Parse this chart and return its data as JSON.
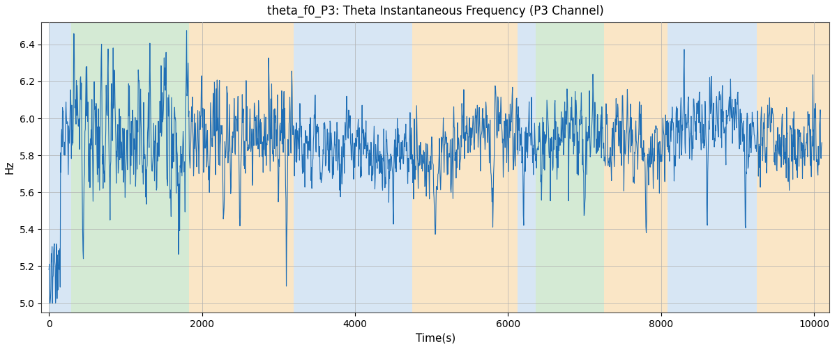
{
  "title": "theta_f0_P3: Theta Instantaneous Frequency (P3 Channel)",
  "xlabel": "Time(s)",
  "ylabel": "Hz",
  "xlim": [
    -100,
    10200
  ],
  "ylim": [
    4.95,
    6.52
  ],
  "yticks": [
    5.0,
    5.2,
    5.4,
    5.6,
    5.8,
    6.0,
    6.2,
    6.4
  ],
  "xticks": [
    0,
    2000,
    4000,
    6000,
    8000,
    10000
  ],
  "line_color": "#1f6eb5",
  "line_width": 0.8,
  "background_color": "#ffffff",
  "grid_color": "#b0b0b0",
  "bands": [
    {
      "xmin": 0,
      "xmax": 290,
      "color": "#a8c8e8",
      "alpha": 0.45
    },
    {
      "xmin": 290,
      "xmax": 1830,
      "color": "#90c890",
      "alpha": 0.38
    },
    {
      "xmin": 1830,
      "xmax": 3200,
      "color": "#f5c882",
      "alpha": 0.45
    },
    {
      "xmin": 3200,
      "xmax": 4750,
      "color": "#a8c8e8",
      "alpha": 0.45
    },
    {
      "xmin": 4750,
      "xmax": 6120,
      "color": "#f5c882",
      "alpha": 0.45
    },
    {
      "xmin": 6120,
      "xmax": 6360,
      "color": "#a8c8e8",
      "alpha": 0.45
    },
    {
      "xmin": 6360,
      "xmax": 7250,
      "color": "#90c890",
      "alpha": 0.38
    },
    {
      "xmin": 7250,
      "xmax": 8080,
      "color": "#f5c882",
      "alpha": 0.45
    },
    {
      "xmin": 8080,
      "xmax": 9250,
      "color": "#a8c8e8",
      "alpha": 0.45
    },
    {
      "xmin": 9250,
      "xmax": 10200,
      "color": "#f5c882",
      "alpha": 0.45
    }
  ],
  "seed": 77,
  "n_points": 2000
}
